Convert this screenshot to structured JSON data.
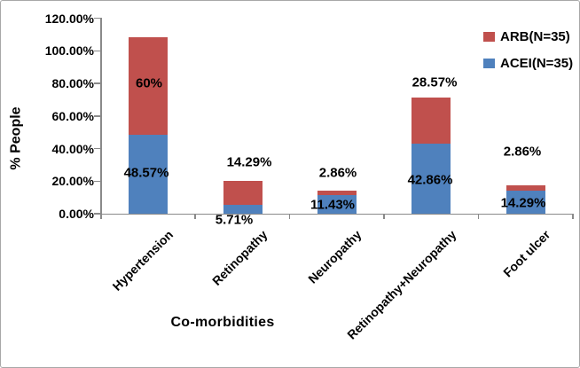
{
  "chart_data": {
    "type": "bar",
    "stacked": true,
    "title": "",
    "xlabel": "Co-morbidities",
    "ylabel": "% People",
    "ylim": [
      0,
      120
    ],
    "ytick_labels": [
      "0.00%",
      "20.00%",
      "40.00%",
      "60.00%",
      "80.00%",
      "100.00%",
      "120.00%"
    ],
    "categories": [
      "Hypertension",
      "Retinopathy",
      "Neuropathy",
      "Retinopathy+Neuropathy",
      "Foot ulcer"
    ],
    "series": [
      {
        "name": "ACEI(N=35)",
        "color": "#4F81BD",
        "values": [
          48.57,
          5.71,
          11.43,
          42.86,
          14.29
        ],
        "data_labels": [
          "48.57%",
          "5.71%",
          "11.43%",
          "42.86%",
          "14.29%"
        ]
      },
      {
        "name": "ARB(N=35)",
        "color": "#C0504D",
        "values": [
          60,
          14.29,
          2.86,
          28.57,
          2.86
        ],
        "data_labels": [
          "60%",
          "14.29%",
          "2.86%",
          "28.57%",
          "2.86%"
        ]
      }
    ],
    "legend": {
      "position": "top-right",
      "entries_order": [
        "ARB(N=35)",
        "ACEI(N=35)"
      ]
    },
    "grid": false,
    "axis_color": "#8A8A8A",
    "text_color": "#000000"
  }
}
